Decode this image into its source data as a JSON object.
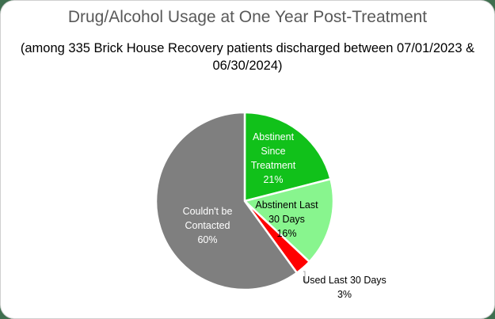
{
  "chart_data": {
    "type": "pie",
    "title": "Drug/Alcohol Usage at One Year Post-Treatment",
    "subtitle": "(among 335 Brick House Recovery patients discharged between 07/01/2023 & 06/30/2024)",
    "categories": [
      "Abstinent Since Treatment",
      "Abstinent Last 30 Days",
      "Used Last 30 Days",
      "Couldn't be Contacted"
    ],
    "values": [
      21,
      16,
      3,
      60
    ],
    "unit": "%",
    "colors": [
      "#11c11a",
      "#88f58e",
      "#ff0000",
      "#7f7f7f"
    ],
    "labels": [
      {
        "lines": [
          "Abstinent",
          "Since",
          "Treatment",
          "21%"
        ]
      },
      {
        "lines": [
          "Abstinent Last",
          "30 Days",
          "16%"
        ]
      },
      {
        "lines": [
          "Used Last 30 Days",
          "3%"
        ]
      },
      {
        "lines": [
          "Couldn't be",
          "Contacted",
          "60%"
        ]
      }
    ],
    "legend": "none",
    "data_labels": "inside/callout"
  },
  "header": {
    "title": "Drug/Alcohol Usage at One Year Post-Treatment",
    "subtitle_line1": "(among 335 Brick House Recovery patients discharged between 07/01/2023 &",
    "subtitle_line2": "06/30/2024)"
  }
}
